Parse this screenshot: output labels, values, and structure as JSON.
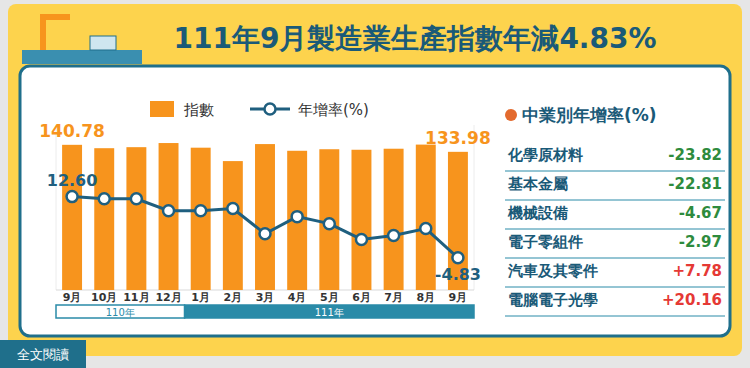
{
  "chart_data": {
    "type": "bar",
    "title": "111年9月製造業生產指數年減4.83%",
    "categories": [
      "9月",
      "10月",
      "11月",
      "12月",
      "1月",
      "2月",
      "3月",
      "4月",
      "5月",
      "6月",
      "7月",
      "8月",
      "9月"
    ],
    "x_groups": [
      {
        "label": "110年",
        "count": 4
      },
      {
        "label": "111年",
        "count": 9
      }
    ],
    "series": [
      {
        "name": "指數",
        "type": "bar",
        "color": "#f7941d",
        "values": [
          140.78,
          137.5,
          138.5,
          142.5,
          138.0,
          125.0,
          141.5,
          135.0,
          136.5,
          136.0,
          137.0,
          141.0,
          133.98
        ],
        "value_labels": [
          "140.78",
          null,
          null,
          null,
          null,
          null,
          null,
          null,
          null,
          null,
          null,
          null,
          "133.98"
        ]
      },
      {
        "name": "年增率(%)",
        "type": "line",
        "axis": "y2",
        "color": "#1f5f7f",
        "marker": "circle",
        "values": [
          12.6,
          12.0,
          12.0,
          8.6,
          8.6,
          9.2,
          2.0,
          6.9,
          4.9,
          0.4,
          1.5,
          3.5,
          -4.83
        ],
        "value_labels": [
          "12.60",
          null,
          null,
          null,
          null,
          null,
          null,
          null,
          null,
          null,
          null,
          null,
          "-4.83"
        ]
      }
    ],
    "ylim": [
      0,
      160
    ],
    "y2lim": [
      -14,
      33
    ],
    "data_labels": true,
    "tick_labels": "x",
    "grid": false,
    "legend": "top"
  },
  "side_panel": {
    "title": "中業別年增率(%)",
    "items": [
      {
        "name": "化學原材料",
        "value": -23.82
      },
      {
        "name": "基本金屬",
        "value": -22.81
      },
      {
        "name": "機械設備",
        "value": -4.67
      },
      {
        "name": "電子零組件",
        "value": -2.97
      },
      {
        "name": "汽車及其零件",
        "value": 7.78,
        "label": "+7.78"
      },
      {
        "name": "電腦電子光學",
        "value": 20.16,
        "label": "+20.16"
      }
    ]
  },
  "footer": {
    "link": "全文閱讀"
  }
}
